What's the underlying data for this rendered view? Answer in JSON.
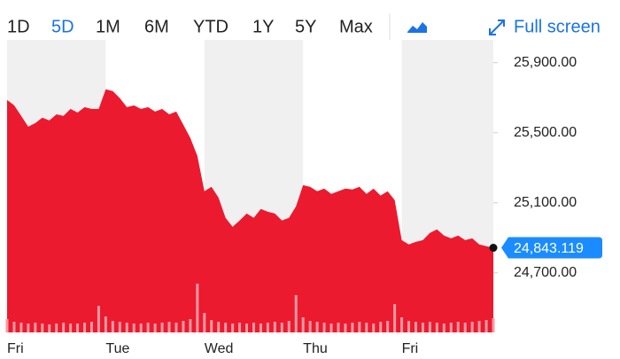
{
  "toolbar": {
    "ranges": [
      "1D",
      "5D",
      "1M",
      "6M",
      "YTD",
      "1Y",
      "5Y",
      "Max"
    ],
    "selected_range": "5D",
    "full_screen": "Full screen"
  },
  "chart_data": {
    "type": "area",
    "categories": [
      "Fri",
      null,
      null,
      null,
      null,
      null,
      null,
      null,
      null,
      null,
      null,
      null,
      null,
      null,
      "Tue",
      null,
      null,
      null,
      null,
      null,
      null,
      null,
      null,
      null,
      null,
      null,
      null,
      null,
      "Wed",
      null,
      null,
      null,
      null,
      null,
      null,
      null,
      null,
      null,
      null,
      null,
      null,
      null,
      "Thu",
      null,
      null,
      null,
      null,
      null,
      null,
      null,
      null,
      null,
      null,
      null,
      null,
      null,
      "Fri",
      null,
      null,
      null,
      null,
      null,
      null,
      null,
      null,
      null,
      null,
      null,
      null,
      null
    ],
    "values": [
      25687,
      25657,
      25596,
      25535,
      25555,
      25586,
      25570,
      25605,
      25596,
      25636,
      25615,
      25646,
      25636,
      25636,
      25748,
      25738,
      25697,
      25646,
      25656,
      25636,
      25646,
      25621,
      25636,
      25605,
      25621,
      25546,
      25470,
      25368,
      25166,
      25191,
      25130,
      25014,
      24963,
      24999,
      25039,
      25014,
      25065,
      25049,
      25039,
      24999,
      25014,
      25080,
      25201,
      25191,
      25166,
      25181,
      25151,
      25166,
      25181,
      25176,
      25191,
      25151,
      25181,
      25141,
      25166,
      25115,
      24887,
      24862,
      24877,
      24887,
      24928,
      24948,
      24913,
      24897,
      24913,
      24887,
      24897,
      24862,
      24852,
      24843.119
    ],
    "color": "#ec1a2e",
    "volume": [
      15,
      12,
      11,
      10,
      11,
      10,
      9,
      10,
      11,
      10,
      10,
      11,
      12,
      30,
      18,
      13,
      12,
      11,
      10,
      10,
      11,
      10,
      11,
      12,
      11,
      13,
      15,
      55,
      22,
      14,
      12,
      11,
      10,
      11,
      10,
      11,
      10,
      11,
      12,
      11,
      13,
      42,
      17,
      13,
      12,
      11,
      10,
      11,
      10,
      11,
      12,
      11,
      10,
      12,
      13,
      32,
      17,
      13,
      12,
      11,
      12,
      11,
      10,
      11,
      12,
      11,
      12,
      13,
      14,
      16
    ],
    "volume_color": "#f49aa4",
    "volume_lim": [
      0,
      100
    ],
    "ylim": [
      24360,
      26030
    ],
    "yticks": [
      {
        "value": 24700,
        "label": "24,700.00"
      },
      {
        "value": 25100,
        "label": "25,100.00"
      },
      {
        "value": 25500,
        "label": "25,500.00"
      },
      {
        "value": 25900,
        "label": "25,900.00"
      }
    ],
    "last_value_label": "24,843.119",
    "band_color": "#f0f0f0"
  }
}
